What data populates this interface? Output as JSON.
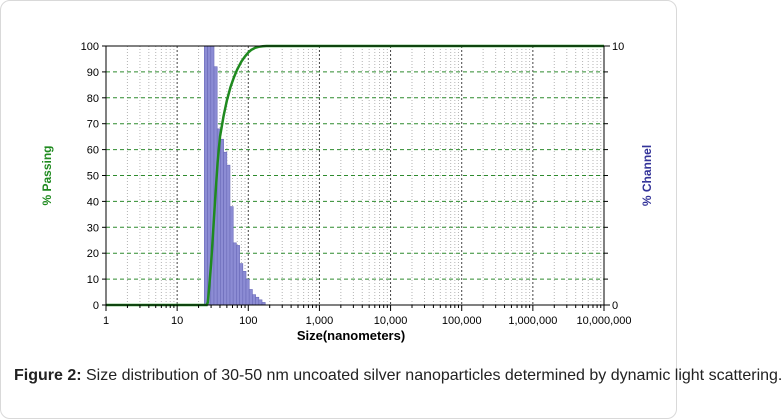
{
  "chart_data": {
    "type": "bar",
    "x_scale": "log",
    "xlim": [
      1,
      10000000
    ],
    "x_tick_labels": [
      "1",
      "10",
      "100",
      "1,000",
      "10,000",
      "100,000",
      "1,000,000",
      "10,000,000"
    ],
    "xlabel": "Size(nanometers)",
    "ylabel_left": "% Passing",
    "ylim_left": [
      0,
      100
    ],
    "y_left_ticks": [
      "0",
      "10",
      "20",
      "30",
      "40",
      "50",
      "60",
      "70",
      "80",
      "90",
      "100"
    ],
    "ylabel_right": "% Channel",
    "ylim_right": [
      0,
      10
    ],
    "y_right_ticks": [
      "0",
      "10"
    ],
    "grid": true,
    "series": [
      {
        "name": "% Channel",
        "kind": "bar",
        "color": "#8c8cd4",
        "x": [
          25.4,
          28.2,
          31.3,
          34.7,
          38.5,
          42.7,
          47.4,
          52.5,
          58.3,
          64.6,
          71.7,
          79.5,
          88.2,
          97.8,
          108.5,
          120.4,
          133.5,
          148.1,
          164.3
        ],
        "values": [
          10,
          10,
          10,
          9.2,
          6.8,
          6.4,
          5.9,
          5.4,
          3.8,
          2.4,
          2.3,
          1.6,
          1.3,
          1.0,
          0.6,
          0.4,
          0.3,
          0.2,
          0.1
        ]
      },
      {
        "name": "% Passing",
        "kind": "line",
        "color": "#1f8a1f",
        "x": [
          1,
          10,
          20,
          26,
          27,
          28,
          30,
          32,
          34,
          37,
          40,
          45,
          50,
          56,
          63,
          70,
          80,
          90,
          100,
          110,
          125,
          140,
          160,
          180,
          10000000
        ],
        "values": [
          0,
          0,
          0,
          0,
          1,
          6,
          16,
          28,
          40,
          55,
          65,
          73,
          79,
          84,
          88,
          91,
          94,
          96,
          97.5,
          98.5,
          99.3,
          99.7,
          99.9,
          100,
          100
        ]
      }
    ]
  },
  "caption": {
    "label": "Figure 2:",
    "text": " Size distribution of 30-50 nm uncoated silver nanoparticles determined by dynamic light scattering."
  }
}
